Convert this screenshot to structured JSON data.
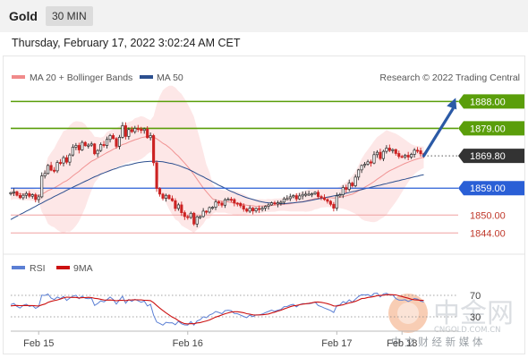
{
  "header": {
    "title": "Gold",
    "timeframe": "30 MIN",
    "timestamp": "Thursday, February 17, 2022 3:02:24 AM CET"
  },
  "copyright": "Research © 2022 Trading Central",
  "watermark": {
    "cn": "中金网",
    "url": "CNGOLD.COM.CN",
    "slogan": "中 文 财 经 新 媒 体"
  },
  "colors": {
    "resistance": "#5a9e0a",
    "support": "#2a5fd6",
    "pivot": "#333333",
    "target_text": "#c0392b",
    "bollinger_fill": "#fde3e3",
    "ma20": "#f08a8a",
    "ma50": "#2c4f8f",
    "candle_up": "#2b2b2b",
    "candle_down": "#cc2222",
    "rsi": "#5b7fd4",
    "rsi_ma": "#cc1111",
    "arrow": "#2b5aa6"
  },
  "chart_data": [
    {
      "type": "candlestick",
      "legend": [
        {
          "name": "MA 20 + Bollinger Bands",
          "color": "#f08a8a"
        },
        {
          "name": "MA 50",
          "color": "#2c4f8f"
        }
      ],
      "ylim": [
        1840.5,
        1893.5
      ],
      "x_ticks": [
        {
          "label": "Feb 15",
          "index": 9
        },
        {
          "label": "Feb 16",
          "index": 57
        },
        {
          "label": "Feb 17",
          "index": 105
        },
        {
          "label": "Feb 18",
          "index": 126
        }
      ],
      "levels": [
        {
          "value": 1888.0,
          "label": "1888.00",
          "role": "resistance",
          "style": "box"
        },
        {
          "value": 1879.0,
          "label": "1879.00",
          "role": "resistance",
          "style": "box"
        },
        {
          "value": 1869.8,
          "label": "1869.80",
          "role": "pivot",
          "style": "box"
        },
        {
          "value": 1859.0,
          "label": "1859.00",
          "role": "support",
          "style": "box"
        },
        {
          "value": 1850.0,
          "label": "1850.00",
          "role": "target",
          "style": "text"
        },
        {
          "value": 1844.0,
          "label": "1844.00",
          "role": "target",
          "style": "text"
        }
      ],
      "arrow": {
        "from_index": 133,
        "from_value": 1869.8,
        "to_index": 143,
        "to_value": 1888.0
      },
      "close": [
        1857.5,
        1857.8,
        1856.6,
        1855.8,
        1856.6,
        1857.2,
        1856.3,
        1856.8,
        1855.2,
        1856.1,
        1863.1,
        1863.9,
        1866.6,
        1865.0,
        1864.8,
        1867.6,
        1867.4,
        1869.2,
        1867.7,
        1870.1,
        1872.7,
        1873.3,
        1871.8,
        1874.3,
        1873.2,
        1873.4,
        1873.8,
        1870.5,
        1871.6,
        1873.6,
        1873.3,
        1875.3,
        1876.6,
        1875.6,
        1873.0,
        1876.0,
        1879.9,
        1876.3,
        1878.6,
        1877.9,
        1879.0,
        1878.8,
        1878.3,
        1878.8,
        1875.9,
        1876.6,
        1867.5,
        1858.9,
        1857.0,
        1855.6,
        1856.6,
        1855.5,
        1854.8,
        1852.2,
        1853.4,
        1850.8,
        1849.5,
        1849.2,
        1850.6,
        1847.0,
        1849.4,
        1849.5,
        1851.3,
        1851.0,
        1852.5,
        1852.6,
        1854.4,
        1854.0,
        1853.3,
        1855.1,
        1855.3,
        1855.2,
        1854.0,
        1853.9,
        1853.1,
        1852.0,
        1851.3,
        1852.3,
        1851.4,
        1852.2,
        1851.9,
        1852.3,
        1852.9,
        1853.4,
        1854.1,
        1853.7,
        1854.1,
        1854.3,
        1855.4,
        1855.5,
        1856.1,
        1856.5,
        1855.4,
        1856.4,
        1856.9,
        1857.0,
        1857.0,
        1857.1,
        1857.6,
        1856.2,
        1855.8,
        1855.2,
        1854.6,
        1853.6,
        1852.3,
        1856.4,
        1856.8,
        1859.2,
        1858.6,
        1860.7,
        1859.8,
        1862.7,
        1865.1,
        1866.6,
        1867.0,
        1867.8,
        1867.4,
        1870.2,
        1871.0,
        1868.9,
        1871.3,
        1872.4,
        1871.6,
        1871.9,
        1870.6,
        1869.6,
        1869.5,
        1870.0,
        1869.4,
        1870.3,
        1871.7,
        1871.5,
        1870.5,
        1869.8
      ],
      "ma20": [
        1857.0,
        1857.3,
        1857.3,
        1857.1,
        1857.0,
        1857.0,
        1856.9,
        1856.8,
        1856.6,
        1856.5,
        1857.0,
        1857.5,
        1858.2,
        1858.6,
        1859.1,
        1859.7,
        1860.3,
        1861.0,
        1861.5,
        1862.2,
        1863.1,
        1863.9,
        1864.6,
        1865.6,
        1866.4,
        1867.2,
        1868.0,
        1868.5,
        1869.1,
        1869.7,
        1870.3,
        1870.9,
        1871.4,
        1872.0,
        1872.5,
        1873.0,
        1873.6,
        1873.9,
        1874.4,
        1874.8,
        1875.2,
        1875.5,
        1875.9,
        1876.1,
        1876.3,
        1876.4,
        1876.1,
        1875.5,
        1874.8,
        1874.0,
        1873.4,
        1872.6,
        1871.7,
        1870.6,
        1869.7,
        1868.5,
        1867.4,
        1866.2,
        1864.9,
        1863.5,
        1862.0,
        1860.5,
        1859.1,
        1857.8,
        1856.6,
        1855.4,
        1855.0,
        1854.8,
        1854.6,
        1854.5,
        1854.4,
        1854.2,
        1854.0,
        1853.8,
        1853.6,
        1853.5,
        1853.3,
        1853.1,
        1853.1,
        1852.9,
        1853.0,
        1853.0,
        1853.1,
        1853.2,
        1853.2,
        1853.3,
        1853.4,
        1853.5,
        1853.6,
        1853.7,
        1853.8,
        1854.0,
        1854.2,
        1854.4,
        1854.5,
        1854.7,
        1855.0,
        1855.2,
        1855.5,
        1855.6,
        1855.7,
        1855.8,
        1855.8,
        1855.8,
        1855.7,
        1855.8,
        1855.9,
        1856.2,
        1856.4,
        1856.7,
        1857.0,
        1857.5,
        1858.1,
        1858.7,
        1859.3,
        1859.9,
        1860.5,
        1861.2,
        1862.0,
        1862.7,
        1863.4,
        1864.2,
        1864.8,
        1865.3,
        1865.8,
        1866.3,
        1866.8,
        1867.3,
        1867.7,
        1868.1,
        1868.5,
        1868.8,
        1869.1,
        1869.3
      ],
      "bb_upper": [
        1859.0,
        1859.3,
        1859.3,
        1859.1,
        1859.0,
        1859.0,
        1858.9,
        1858.8,
        1858.6,
        1858.5,
        1863.0,
        1865.6,
        1869.3,
        1870.9,
        1872.3,
        1874.4,
        1876.2,
        1878.1,
        1878.5,
        1880.0,
        1881.0,
        1881.4,
        1881.3,
        1881.1,
        1880.3,
        1878.8,
        1877.8,
        1876.2,
        1876.1,
        1875.9,
        1876.3,
        1877.8,
        1878.3,
        1878.8,
        1879.1,
        1879.7,
        1880.5,
        1880.5,
        1881.2,
        1881.5,
        1882.4,
        1882.7,
        1883.1,
        1882.8,
        1882.2,
        1881.7,
        1883.1,
        1887.0,
        1889.8,
        1891.8,
        1892.7,
        1893.3,
        1893.3,
        1892.7,
        1891.5,
        1890.5,
        1888.9,
        1887.1,
        1885.1,
        1882.9,
        1878.9,
        1875.1,
        1871.2,
        1866.9,
        1864.4,
        1860.4,
        1859.1,
        1858.8,
        1858.4,
        1858.2,
        1858.3,
        1858.0,
        1858.1,
        1857.8,
        1857.3,
        1857.0,
        1856.4,
        1855.6,
        1855.4,
        1855.3,
        1855.4,
        1855.3,
        1855.2,
        1855.4,
        1855.3,
        1855.5,
        1855.5,
        1855.6,
        1855.8,
        1856.1,
        1856.4,
        1856.8,
        1857.2,
        1857.6,
        1857.8,
        1858.3,
        1858.8,
        1859.0,
        1859.1,
        1859.1,
        1858.9,
        1859.0,
        1858.9,
        1859.0,
        1858.9,
        1859.1,
        1859.5,
        1860.3,
        1861.0,
        1862.0,
        1863.1,
        1864.6,
        1866.6,
        1868.8,
        1870.5,
        1871.9,
        1873.3,
        1874.8,
        1876.1,
        1876.8,
        1877.6,
        1878.4,
        1878.0,
        1877.6,
        1877.2,
        1876.6,
        1875.9,
        1875.2,
        1874.4,
        1873.7,
        1873.3,
        1873.1,
        1873.0,
        1872.9
      ],
      "bb_lower": [
        1855.0,
        1855.3,
        1855.3,
        1855.1,
        1855.0,
        1855.0,
        1854.9,
        1854.8,
        1854.6,
        1854.5,
        1851.0,
        1849.4,
        1847.1,
        1846.3,
        1845.9,
        1845.0,
        1844.4,
        1843.9,
        1844.5,
        1844.4,
        1845.2,
        1846.4,
        1847.9,
        1850.1,
        1852.5,
        1855.6,
        1858.2,
        1860.8,
        1862.1,
        1863.5,
        1864.3,
        1864.0,
        1864.5,
        1865.2,
        1865.9,
        1866.3,
        1866.7,
        1867.3,
        1867.6,
        1868.1,
        1868.0,
        1868.3,
        1868.7,
        1869.4,
        1870.4,
        1871.1,
        1869.1,
        1864.0,
        1859.8,
        1856.2,
        1854.1,
        1851.9,
        1850.1,
        1848.5,
        1847.9,
        1846.5,
        1845.9,
        1845.3,
        1844.7,
        1844.1,
        1845.1,
        1845.9,
        1847.0,
        1848.7,
        1848.8,
        1850.4,
        1850.9,
        1850.8,
        1850.8,
        1850.8,
        1850.5,
        1850.4,
        1849.9,
        1849.8,
        1849.9,
        1850.0,
        1850.2,
        1850.6,
        1850.8,
        1850.5,
        1850.6,
        1850.7,
        1851.0,
        1851.0,
        1851.1,
        1851.1,
        1851.3,
        1851.4,
        1851.4,
        1851.3,
        1851.2,
        1851.2,
        1851.2,
        1851.2,
        1851.2,
        1851.1,
        1851.2,
        1851.4,
        1851.9,
        1852.1,
        1852.5,
        1852.6,
        1852.7,
        1852.6,
        1852.5,
        1852.5,
        1852.3,
        1852.1,
        1851.8,
        1851.4,
        1850.9,
        1850.4,
        1849.6,
        1848.6,
        1848.1,
        1847.9,
        1847.7,
        1847.6,
        1847.9,
        1848.6,
        1849.2,
        1850.0,
        1851.6,
        1853.0,
        1854.4,
        1856.0,
        1857.7,
        1859.4,
        1861.0,
        1862.5,
        1863.7,
        1864.5,
        1865.2,
        1865.7
      ],
      "ma50": [
        1848.5,
        1849.1,
        1849.6,
        1850.2,
        1850.7,
        1851.3,
        1851.8,
        1852.4,
        1852.9,
        1853.5,
        1854.0,
        1854.6,
        1855.1,
        1855.6,
        1856.2,
        1856.7,
        1857.2,
        1857.7,
        1858.3,
        1858.8,
        1859.3,
        1859.8,
        1860.3,
        1860.8,
        1861.3,
        1861.8,
        1862.3,
        1862.8,
        1863.2,
        1863.7,
        1864.1,
        1864.5,
        1864.9,
        1865.3,
        1865.6,
        1866.0,
        1866.3,
        1866.6,
        1866.8,
        1867.0,
        1867.3,
        1867.5,
        1867.7,
        1867.8,
        1867.9,
        1868.0,
        1868.0,
        1868.0,
        1867.9,
        1867.8,
        1867.6,
        1867.4,
        1867.2,
        1866.9,
        1866.6,
        1866.2,
        1865.8,
        1865.4,
        1864.9,
        1864.4,
        1863.8,
        1863.3,
        1862.8,
        1862.2,
        1861.7,
        1861.1,
        1860.6,
        1860.0,
        1859.5,
        1859.0,
        1858.4,
        1857.9,
        1857.5,
        1857.0,
        1856.6,
        1856.2,
        1855.8,
        1855.5,
        1855.2,
        1854.9,
        1854.6,
        1854.4,
        1854.2,
        1854.1,
        1854.0,
        1853.9,
        1853.8,
        1853.8,
        1853.8,
        1853.9,
        1854.0,
        1854.1,
        1854.2,
        1854.3,
        1854.4,
        1854.6,
        1854.8,
        1855.0,
        1855.2,
        1855.4,
        1855.6,
        1855.8,
        1856.0,
        1856.2,
        1856.4,
        1856.6,
        1856.8,
        1857.0,
        1857.3,
        1857.5,
        1857.8,
        1858.0,
        1858.3,
        1858.5,
        1858.8,
        1859.0,
        1859.3,
        1859.5,
        1859.8,
        1860.0,
        1860.3,
        1860.5,
        1860.8,
        1861.0,
        1861.3,
        1861.5,
        1861.8,
        1862.0,
        1862.3,
        1862.5,
        1862.8,
        1863.0,
        1863.3,
        1863.5
      ]
    },
    {
      "type": "line",
      "legend": [
        {
          "name": "RSI",
          "color": "#5b7fd4"
        },
        {
          "name": "9MA",
          "color": "#cc1111"
        }
      ],
      "ylim": [
        0,
        100
      ],
      "y_ticks": [
        {
          "value": 70,
          "label": "70"
        },
        {
          "value": 30,
          "label": "30"
        }
      ],
      "series": [
        {
          "name": "RSI",
          "values": [
            52.8,
            54.8,
            49.5,
            46.3,
            51.3,
            53.5,
            49.5,
            50.8,
            45.8,
            49.0,
            70.3,
            69.8,
            72.5,
            64.9,
            62.1,
            66.8,
            64.0,
            68.0,
            60.5,
            64.8,
            68.5,
            70.1,
            63.8,
            68.5,
            64.5,
            63.6,
            65.0,
            51.1,
            54.9,
            59.8,
            57.8,
            62.0,
            66.8,
            62.3,
            53.6,
            61.2,
            68.3,
            55.3,
            62.2,
            58.9,
            62.7,
            59.9,
            57.1,
            59.3,
            50.2,
            53.3,
            33.2,
            20.3,
            17.6,
            14.5,
            19.8,
            18.9,
            19.0,
            15.4,
            21.6,
            17.0,
            15.0,
            14.6,
            21.2,
            14.6,
            22.2,
            24.6,
            30.2,
            28.3,
            33.5,
            35.6,
            40.0,
            38.2,
            35.8,
            41.5,
            42.4,
            41.5,
            36.1,
            35.9,
            33.2,
            30.7,
            28.5,
            33.3,
            30.4,
            33.9,
            33.4,
            35.1,
            37.8,
            40.0,
            42.5,
            40.1,
            42.3,
            43.9,
            49.0,
            49.2,
            51.9,
            53.2,
            48.5,
            52.6,
            54.5,
            54.4,
            54.3,
            55.3,
            57.6,
            51.1,
            49.0,
            46.4,
            44.1,
            41.9,
            38.1,
            51.2,
            52.1,
            58.4,
            55.9,
            61.6,
            57.1,
            63.0,
            67.8,
            71.2,
            70.6,
            71.3,
            68.3,
            73.5,
            74.2,
            67.0,
            72.6,
            73.9,
            70.5,
            70.8,
            64.0,
            61.2,
            61.0,
            61.9,
            58.7,
            61.2,
            64.2,
            63.0,
            59.4,
            57.6
          ]
        },
        {
          "name": "9MA",
          "values": [
            50.4,
            51.0,
            51.1,
            50.9,
            51.0,
            51.1,
            51.0,
            51.0,
            50.5,
            50.1,
            52.2,
            53.9,
            56.8,
            58.8,
            60.1,
            61.5,
            63.1,
            65.2,
            66.7,
            66.3,
            66.1,
            66.2,
            65.2,
            65.6,
            65.9,
            66.4,
            65.9,
            64.5,
            63.8,
            62.7,
            61.4,
            61.1,
            61.3,
            61.0,
            59.8,
            60.6,
            60.9,
            60.2,
            61.4,
            61.5,
            61.9,
            61.6,
            61.5,
            60.9,
            60.7,
            60.2,
            56.3,
            51.1,
            46.1,
            41.9,
            37.4,
            33.5,
            29.5,
            26.9,
            22.9,
            19.7,
            17.3,
            16.9,
            17.3,
            17.1,
            18.6,
            19.3,
            20.9,
            22.4,
            24.2,
            26.8,
            29.5,
            31.3,
            33.5,
            35.6,
            37.3,
            38.9,
            39.5,
            39.5,
            38.7,
            37.6,
            35.9,
            35.0,
            33.6,
            33.3,
            33.6,
            33.9,
            34.5,
            35.4,
            37.2,
            38.6,
            40.6,
            42.4,
            44.6,
            46.6,
            48.9,
            50.5,
            51.2,
            52.5,
            53.7,
            54.4,
            55.2,
            56.2,
            57.3,
            57.7,
            57.0,
            55.9,
            54.5,
            52.7,
            50.3,
            50.2,
            51.3,
            52.4,
            54.4,
            55.8,
            57.1,
            58.9,
            61.2,
            64.0,
            64.5,
            66.1,
            66.8,
            67.9,
            69.3,
            69.8,
            70.4,
            71.1,
            71.4,
            71.1,
            70.9,
            69.2,
            67.8,
            66.1,
            64.7,
            62.9,
            61.8,
            61.4,
            60.7,
            60.6
          ]
        }
      ]
    }
  ]
}
